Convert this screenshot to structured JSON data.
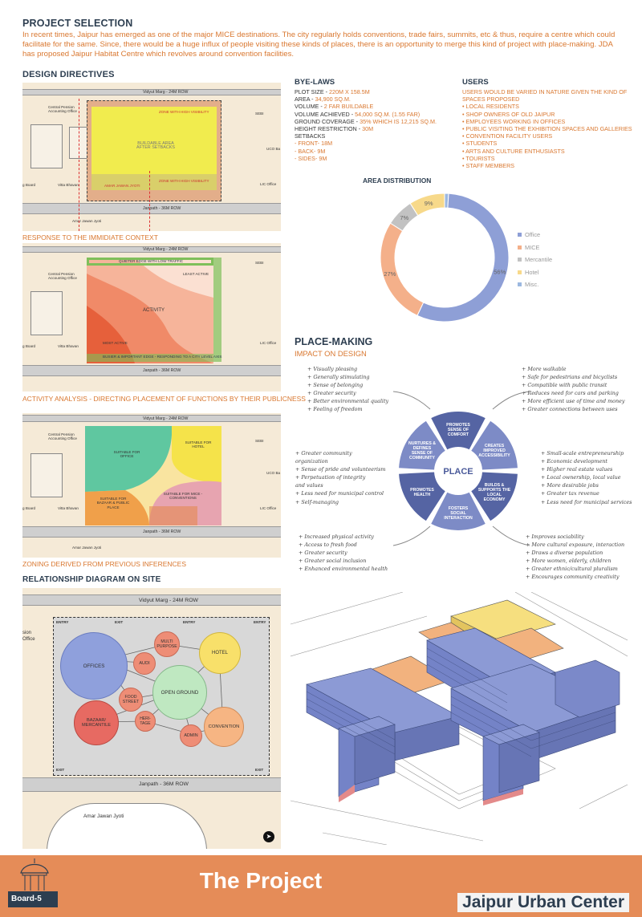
{
  "header": {
    "title": "PROJECT SELECTION",
    "intro": "In recent times, Jaipur has emerged as one of the major MICE destinations. The city regularly holds conventions, trade fairs, summits, etc & thus, require a centre which could facilitate for the same. Since, there would be a huge influx of people visiting these kinds of places, there is an opportunity to merge this kind of project with place-making. JDA has proposed Jaipur Habitat Centre which revolves around convention facilities."
  },
  "design_directives": {
    "title": "DESIGN DIRECTIVES",
    "map_labels": {
      "vidyut": "Vidyut Marg - 24M ROW",
      "janpath": "Janpath - 36M ROW",
      "amar": "Amar Jawan Jyoti",
      "central_pension": "Central Pension Accounting Office",
      "sebi": "SEBI",
      "uco": "UCO Ba",
      "lic": "LIC Office",
      "vitta": "Vitta Bhavan",
      "board": "g Board"
    },
    "panel1": {
      "buildable": "BUILDABLE AREA AFTER SETBACKS",
      "zone_high_top": "ZONE WITH HIGH VISIBILITY",
      "zone_high_bottom": "ZONE WITH HIGH VISIBILITY",
      "amar_response": "AMAR JAWAN JYOTI",
      "caption": "RESPONSE TO THE IMMIDIATE CONTEXT"
    },
    "panel2": {
      "top_edge": "QUIETER EDGE WITH LOW TRAFFIC",
      "least": "LEAST ACTIVE",
      "activity": "ACTIVITY",
      "most": "MOST ACTIVE",
      "bottom_edge": "BUSIER & IMPORTANT EDGE - RESPONDING TO A CITY LEVEL AXIS",
      "caption": "ACTIVITY ANALYSIS - DIRECTING PLACEMENT OF FUNCTIONS BY THEIR PUBLICNESS"
    },
    "panel3": {
      "office": "SUITABLE FOR OFFICE",
      "hotel": "SUITABLE FOR HOTEL",
      "bazaar": "SUITABLE FOR BAZAAR & PUBLIC PLACE",
      "mice": "SUITABLE FOR MICE - CONVENTIONS",
      "caption": "ZONING DERIVED FROM PREVIOUS INFERENCES"
    }
  },
  "relationship": {
    "title": "RELATIONSHIP DIAGRAM ON SITE",
    "vidyut": "Vidyut Marg - 24M ROW",
    "janpath": "Janpath - 36M ROW",
    "amar": "Amar Jawan Jyoti",
    "side": "sion Office",
    "entries": [
      "ENTRY",
      "EXIT",
      "ENTRY",
      "ENTRY"
    ],
    "exits": [
      "EXIT",
      "EXIT"
    ],
    "bubbles": {
      "offices": "OFFICES",
      "multi": "MULTI PURPOSE",
      "hotel": "HOTEL",
      "audi": "AUDI",
      "open": "OPEN GROUND",
      "food": "FOOD STREET",
      "bazaar": "BAZAAR/ MERCANTILE",
      "heritage": "HERI- TAGE",
      "admin": "ADMIN",
      "convention": "CONVENTION"
    }
  },
  "bye_laws": {
    "title": "BYE-LAWS",
    "items": [
      {
        "label": "PLOT SIZE - ",
        "value": "220M X 158.5M"
      },
      {
        "label": "AREA - ",
        "value": "34,900 SQ.M."
      },
      {
        "label": "VOLUME - ",
        "value": "2 FAR BUILDABLE"
      },
      {
        "label": "VOLUME ACHIEVED - ",
        "value": "54,000 SQ.M. (1.55 FAR)"
      },
      {
        "label": "GROUND COVERAGE - ",
        "value": "35% WHICH IS 12,215 SQ.M."
      },
      {
        "label": "HEIGHT RESTRICTION - ",
        "value": "30M"
      },
      {
        "label": "SETBACKS",
        "value": ""
      },
      {
        "label": "",
        "value": "- FRONT- 18M"
      },
      {
        "label": "",
        "value": "- BACK- 9M"
      },
      {
        "label": "",
        "value": "- SIDES- 9M"
      }
    ]
  },
  "users": {
    "title": "USERS",
    "items": [
      "USERS WOULD BE VARIED IN NATURE GIVEN THE KIND OF",
      "SPACES PROPOSED",
      "• LOCAL RESIDENTS",
      "• SHOP OWNERS OF OLD JAIPUR",
      "• EMPLOYEES WORKING IN OFFICES",
      "• PUBLIC VISITING THE EXHIBITION SPACES AND GALLERIES",
      "• CONVENTION FACILITY USERS",
      "• STUDENTS",
      "• ARTS AND CULTURE ENTHUSIASTS",
      "• TOURISTS",
      "• STAFF MEMBERS"
    ]
  },
  "chart_data": {
    "type": "pie",
    "title": "AREA DISTRIBUTION",
    "categories": [
      "Office",
      "MICE",
      "Mercantile",
      "Hotel",
      "Misc."
    ],
    "values": [
      56,
      27,
      7,
      9,
      1
    ],
    "value_labels": [
      "56%",
      "27%",
      "7%",
      "9%",
      ""
    ],
    "colors": [
      "#8e9fd6",
      "#f4b08a",
      "#c2c2c2",
      "#f7d98a",
      "#9cb8e0"
    ],
    "legend_position": "right"
  },
  "place_making": {
    "title": "PLACE-MAKING",
    "subtitle": "IMPACT ON DESIGN",
    "center": "PLACE",
    "segments": [
      "PROMOTES SENSE OF COMFORT",
      "CREATES IMPROVED ACCESSIBILITY",
      "BUILDS & SUPPORTS THE LOCAL ECONOMY",
      "FOSTERS SOCIAL INTERACTION",
      "PROMOTES HEALTH",
      "NURTURES & DEFINES SENSE OF COMMUNITY"
    ],
    "top_left": [
      "+ Visually pleasing",
      "+ Generally stimulating",
      "+ Sense of belonging",
      "+ Greater security",
      "+ Better environmental quality",
      "+ Feeling of freedom"
    ],
    "top_right": [
      "+ More walkable",
      "+ Safe for pedestrians and bicyclists",
      "+ Compatible with public transit",
      "+ Reduces need for cars and parking",
      "+ More efficient use of time and money",
      "+ Greater connections between uses"
    ],
    "mid_left": [
      "+ Greater community",
      "   organization",
      "+ Sense of pride and volunteerism",
      "+ Perpetuation of integrity",
      "   and values",
      "+ Less need for municipal control",
      "+ Self-managing"
    ],
    "mid_right": [
      "+ Small-scale entrepreneurship",
      "+ Economic development",
      "+ Higher real estate values",
      "+ Local ownership, local value",
      "+ More desirable jobs",
      "+ Greater tax revenue",
      "+ Less need for municipal services"
    ],
    "bottom_left": [
      "+ Increased physical activity",
      "+ Access to fresh food",
      "+ Greater security",
      "+ Greater social inclusion",
      "+ Enhanced environmental health"
    ],
    "bottom_right": [
      "+ Improves sociability",
      "+ More cultural exposure, interaction",
      "+ Draws a diverse population",
      "+ More women, elderly, children",
      "+ Greater ethnic/cultural pluralism",
      "+ Encourages community creativity"
    ]
  },
  "footer": {
    "title": "The Project",
    "project": "Jaipur Urban Center",
    "board": "Board-5"
  }
}
